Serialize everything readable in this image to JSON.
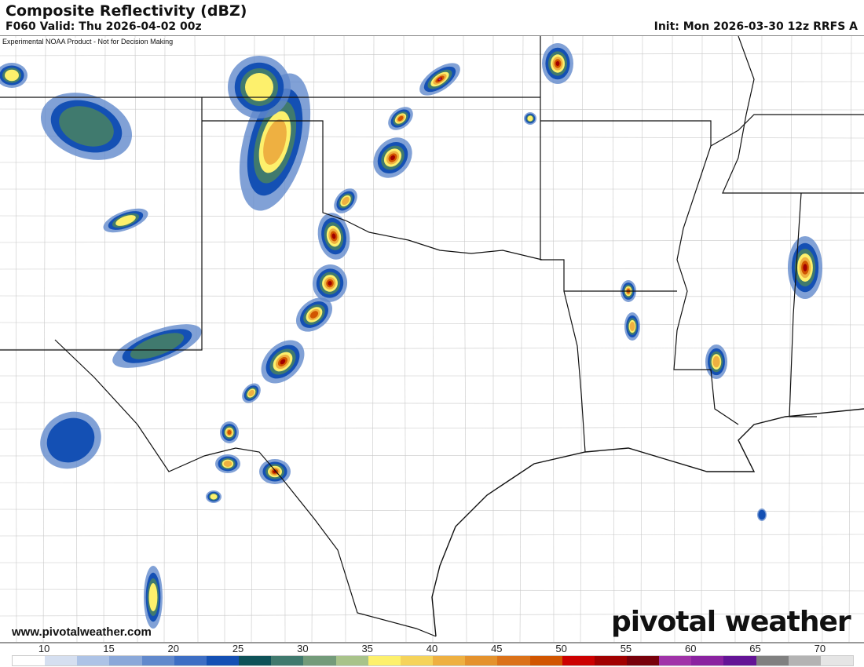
{
  "header": {
    "title": "Composite Reflectivity (dBZ)",
    "valid": "F060 Valid: Thu 2026-04-02 00z",
    "init": "Init: Mon 2026-03-30 12z RRFS A"
  },
  "map": {
    "disclaimer": "Experimental NOAA Product - Not for Decision Making",
    "region": "Southern Plains / Texas / Lower Mississippi Valley"
  },
  "footer": {
    "url": "www.pivotalweather.com",
    "logo": "pivotal weather"
  },
  "colorbar": {
    "labels": [
      "10",
      "15",
      "20",
      "25",
      "30",
      "35",
      "40",
      "45",
      "50",
      "55",
      "60",
      "65",
      "70"
    ],
    "colors": [
      "#ffffff",
      "#d5dff0",
      "#adc3e6",
      "#8aa8d9",
      "#6189cc",
      "#3d6ec4",
      "#1450b4",
      "#0e5258",
      "#407a6e",
      "#739b7a",
      "#a8c38a",
      "#fdf06c",
      "#f5d35a",
      "#eeb041",
      "#e4922d",
      "#db7219",
      "#d15500",
      "#cc0000",
      "#a10000",
      "#78000a",
      "#a032a8",
      "#8a22a0",
      "#641496",
      "#808080",
      "#b3b3b3",
      "#e5e5e5"
    ]
  }
}
